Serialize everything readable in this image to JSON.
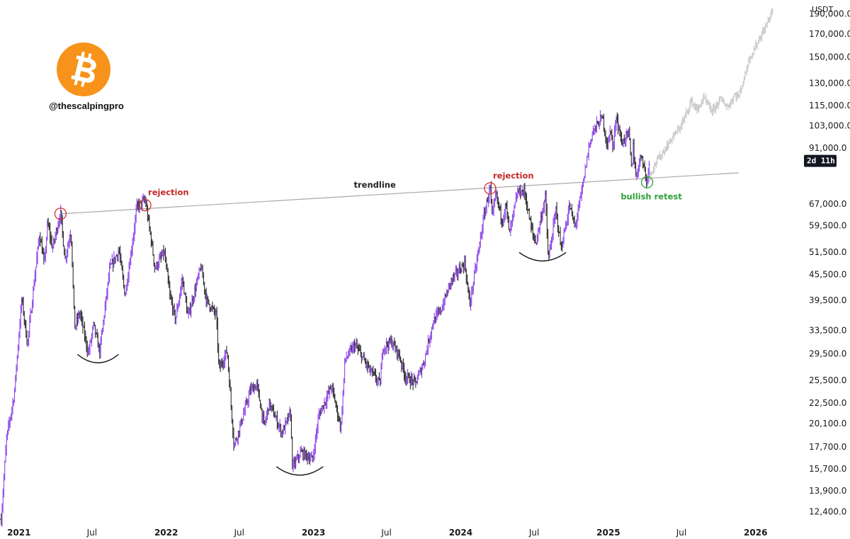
{
  "watermark": {
    "logo_icon": "bitcoin-logo-icon",
    "logo_color": "#f7931a",
    "handle": "@thescalpingpro"
  },
  "price_axis": {
    "currency": "USDT",
    "countdown_badge": "2d 11h"
  },
  "chart_data": {
    "type": "bar",
    "title": "",
    "xlabel": "",
    "ylabel": "",
    "yscale": "log",
    "currency": "USDT",
    "ylim": [
      11500,
      205000
    ],
    "xlim": [
      "2020-11-15",
      "2026-04-01"
    ],
    "y_ticks": [
      "190,000.0",
      "170,000.0",
      "150,000.0",
      "130,000.0",
      "115,000.0",
      "103,000.0",
      "91,000.0",
      "67,000.0",
      "59,500.0",
      "51,500.0",
      "45,500.0",
      "39,500.0",
      "33,500.0",
      "29,500.0",
      "25,500.0",
      "22,500.0",
      "20,100.0",
      "17,700.0",
      "15,700.0",
      "13,900.0",
      "12,400.0"
    ],
    "x_ticks": [
      {
        "date": "2021-01-01",
        "label": "2021",
        "year": true
      },
      {
        "date": "2021-07-01",
        "label": "Jul",
        "year": false
      },
      {
        "date": "2022-01-01",
        "label": "2022",
        "year": true
      },
      {
        "date": "2022-07-01",
        "label": "Jul",
        "year": false
      },
      {
        "date": "2023-01-01",
        "label": "2023",
        "year": true
      },
      {
        "date": "2023-07-01",
        "label": "Jul",
        "year": false
      },
      {
        "date": "2024-01-01",
        "label": "2024",
        "year": true
      },
      {
        "date": "2024-07-01",
        "label": "Jul",
        "year": false
      },
      {
        "date": "2025-01-01",
        "label": "2025",
        "year": true
      },
      {
        "date": "2025-07-01",
        "label": "Jul",
        "year": false
      },
      {
        "date": "2026-01-01",
        "label": "2026",
        "year": true
      }
    ],
    "series": [
      {
        "kind": "price",
        "color_up": "#8e44e8",
        "color_down": "#2b2b2b",
        "points": [
          [
            "2020-11-18",
            11900
          ],
          [
            "2020-12-01",
            18500
          ],
          [
            "2020-12-20",
            23500
          ],
          [
            "2021-01-08",
            40000
          ],
          [
            "2021-01-22",
            31000
          ],
          [
            "2021-02-08",
            44000
          ],
          [
            "2021-02-21",
            57000
          ],
          [
            "2021-03-05",
            48000
          ],
          [
            "2021-03-13",
            60500
          ],
          [
            "2021-03-25",
            52500
          ],
          [
            "2021-04-14",
            64000
          ],
          [
            "2021-04-25",
            49500
          ],
          [
            "2021-05-10",
            58000
          ],
          [
            "2021-05-19",
            34000
          ],
          [
            "2021-06-01",
            37000
          ],
          [
            "2021-06-22",
            29500
          ],
          [
            "2021-07-05",
            34500
          ],
          [
            "2021-07-20",
            29800
          ],
          [
            "2021-08-14",
            47000
          ],
          [
            "2021-09-06",
            52000
          ],
          [
            "2021-09-21",
            40500
          ],
          [
            "2021-10-10",
            55000
          ],
          [
            "2021-10-20",
            66000
          ],
          [
            "2021-11-10",
            68500
          ],
          [
            "2021-11-26",
            54000
          ],
          [
            "2021-12-04",
            47000
          ],
          [
            "2021-12-27",
            51500
          ],
          [
            "2022-01-10",
            40500
          ],
          [
            "2022-01-24",
            35500
          ],
          [
            "2022-02-10",
            44500
          ],
          [
            "2022-02-24",
            36000
          ],
          [
            "2022-03-28",
            47500
          ],
          [
            "2022-04-11",
            39500
          ],
          [
            "2022-05-05",
            36500
          ],
          [
            "2022-05-12",
            27000
          ],
          [
            "2022-06-01",
            30000
          ],
          [
            "2022-06-18",
            17800
          ],
          [
            "2022-07-01",
            19500
          ],
          [
            "2022-07-29",
            24200
          ],
          [
            "2022-08-14",
            24800
          ],
          [
            "2022-09-01",
            19800
          ],
          [
            "2022-09-13",
            22500
          ],
          [
            "2022-10-15",
            19100
          ],
          [
            "2022-11-05",
            21300
          ],
          [
            "2022-11-10",
            15800
          ],
          [
            "2022-12-01",
            17200
          ],
          [
            "2022-12-30",
            16500
          ],
          [
            "2023-01-14",
            21000
          ],
          [
            "2023-02-15",
            24700
          ],
          [
            "2023-03-10",
            19600
          ],
          [
            "2023-03-20",
            28500
          ],
          [
            "2023-04-14",
            31000
          ],
          [
            "2023-05-20",
            27000
          ],
          [
            "2023-06-15",
            25000
          ],
          [
            "2023-06-22",
            30500
          ],
          [
            "2023-07-13",
            31500
          ],
          [
            "2023-08-01",
            29300
          ],
          [
            "2023-08-17",
            26000
          ],
          [
            "2023-09-11",
            25100
          ],
          [
            "2023-10-01",
            28000
          ],
          [
            "2023-10-24",
            35000
          ],
          [
            "2023-11-15",
            37800
          ],
          [
            "2023-12-08",
            44000
          ],
          [
            "2024-01-11",
            48500
          ],
          [
            "2024-01-23",
            38500
          ],
          [
            "2024-02-15",
            52500
          ],
          [
            "2024-02-28",
            63000
          ],
          [
            "2024-03-14",
            73500
          ],
          [
            "2024-03-19",
            61500
          ],
          [
            "2024-03-28",
            71000
          ],
          [
            "2024-04-13",
            61000
          ],
          [
            "2024-04-22",
            66800
          ],
          [
            "2024-05-01",
            56800
          ],
          [
            "2024-05-21",
            71500
          ],
          [
            "2024-06-07",
            71800
          ],
          [
            "2024-06-24",
            58500
          ],
          [
            "2024-07-05",
            54000
          ],
          [
            "2024-07-29",
            70000
          ],
          [
            "2024-08-05",
            49000
          ],
          [
            "2024-08-24",
            64800
          ],
          [
            "2024-09-06",
            52500
          ],
          [
            "2024-09-27",
            66500
          ],
          [
            "2024-10-10",
            58900
          ],
          [
            "2024-10-29",
            73500
          ],
          [
            "2024-11-12",
            89800
          ],
          [
            "2024-11-22",
            99000
          ],
          [
            "2024-12-05",
            103500
          ],
          [
            "2024-12-17",
            108000
          ],
          [
            "2024-12-30",
            91500
          ],
          [
            "2025-01-07",
            102000
          ],
          [
            "2025-01-13",
            89500
          ],
          [
            "2025-01-20",
            109500
          ],
          [
            "2025-02-03",
            93500
          ],
          [
            "2025-02-21",
            99000
          ],
          [
            "2025-02-28",
            79000
          ],
          [
            "2025-03-03",
            94000
          ],
          [
            "2025-03-10",
            77500
          ],
          [
            "2025-03-24",
            88500
          ],
          [
            "2025-04-07",
            74800
          ],
          [
            "2025-04-12",
            85000
          ]
        ]
      },
      {
        "kind": "projection",
        "color": "#c8c8c8",
        "points": [
          [
            "2025-04-12",
            78000
          ],
          [
            "2025-04-28",
            84000
          ],
          [
            "2025-05-20",
            90000
          ],
          [
            "2025-06-10",
            97000
          ],
          [
            "2025-06-25",
            101000
          ],
          [
            "2025-07-10",
            108000
          ],
          [
            "2025-07-25",
            118000
          ],
          [
            "2025-08-10",
            112000
          ],
          [
            "2025-08-25",
            120000
          ],
          [
            "2025-09-15",
            111000
          ],
          [
            "2025-10-05",
            119000
          ],
          [
            "2025-10-25",
            114000
          ],
          [
            "2025-11-10",
            122000
          ],
          [
            "2025-11-20",
            121000
          ],
          [
            "2025-12-05",
            135000
          ],
          [
            "2025-12-15",
            148000
          ],
          [
            "2025-12-28",
            156000
          ],
          [
            "2026-01-10",
            166000
          ],
          [
            "2026-01-25",
            176000
          ],
          [
            "2026-02-05",
            187000
          ],
          [
            "2026-02-12",
            195000
          ]
        ]
      }
    ],
    "trendline": {
      "from": [
        "2021-04-14",
        63500
      ],
      "to": [
        "2025-11-20",
        79500
      ],
      "label": "trendline"
    },
    "markers": [
      {
        "date": "2021-04-14",
        "value": 63500,
        "color": "#d32f2f",
        "label": ""
      },
      {
        "date": "2021-11-10",
        "value": 66600,
        "color": "#d32f2f",
        "label": "rejection"
      },
      {
        "date": "2024-03-14",
        "value": 73000,
        "color": "#d32f2f",
        "label": "rejection"
      },
      {
        "date": "2025-04-07",
        "value": 75500,
        "color": "#2e9e3a",
        "label": "bullish retest"
      }
    ],
    "bottom_arcs": [
      {
        "from": "2021-05-26",
        "to": "2021-09-05",
        "value": 28500
      },
      {
        "from": "2022-10-01",
        "to": "2023-01-25",
        "value": 15400
      },
      {
        "from": "2024-05-25",
        "to": "2024-09-18",
        "value": 49800
      }
    ]
  }
}
